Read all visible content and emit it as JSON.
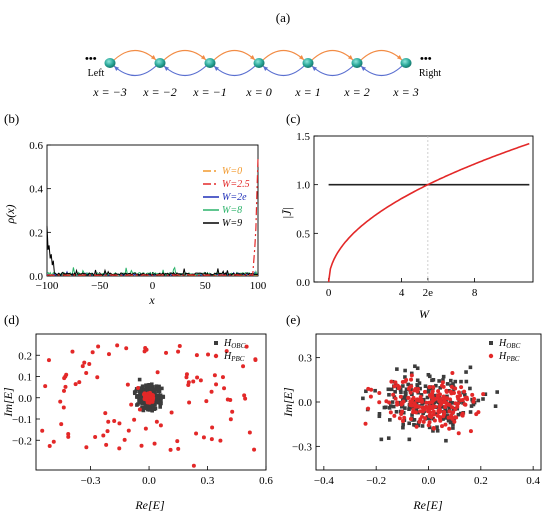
{
  "panel_a": {
    "label": "(a)",
    "left_label": "Left",
    "right_label": "Right",
    "dots": "•••",
    "site_labels": [
      "x = −3",
      "x = −2",
      "x = −1",
      "x = 0",
      "x = 1",
      "x = 2",
      "x = 3"
    ],
    "node_color": "#2aa89a",
    "hop_right_color": "#f28c45",
    "hop_left_color": "#5a6fd0"
  },
  "chart_data": [
    {
      "id": "b",
      "type": "line",
      "panel_label": "(b)",
      "xlabel": "x",
      "ylabel": "ρ(x)",
      "xlim": [
        -100,
        100
      ],
      "ylim": [
        0,
        0.6
      ],
      "xticks": [
        -100,
        -50,
        0,
        50,
        100
      ],
      "yticks": [
        0.0,
        0.2,
        0.4,
        0.6
      ],
      "legend_position": "right",
      "series": [
        {
          "name": "W=0",
          "color": "#f29a2e",
          "dash": "8,3,2,3"
        },
        {
          "name": "W=2.5",
          "color": "#e32828",
          "dash": "8,3,2,3"
        },
        {
          "name": "W=2e",
          "color": "#1f2fb8",
          "dash": ""
        },
        {
          "name": "W=8",
          "color": "#2bb36a",
          "dash": ""
        },
        {
          "name": "W=9",
          "color": "#000000",
          "dash": ""
        }
      ],
      "right_edge_peak": {
        "x": [
          96,
          97,
          98,
          99,
          100
        ],
        "y": [
          0.07,
          0.13,
          0.22,
          0.38,
          0.54
        ]
      },
      "left_edge_peak": {
        "x": [
          -100,
          -99,
          -98,
          -97,
          -96,
          -95,
          -94
        ],
        "y": [
          0.23,
          0.12,
          0.14,
          0.08,
          0.1,
          0.05,
          0.07
        ]
      }
    },
    {
      "id": "c",
      "type": "line",
      "panel_label": "(c)",
      "xlabel": "W",
      "ylabel": "|J̄|",
      "xlim": [
        -0.8,
        11.2
      ],
      "ylim": [
        0,
        1.5
      ],
      "xticks": [
        0,
        4,
        5.44,
        8
      ],
      "xticklabels": [
        "0",
        "4",
        "2e",
        "8"
      ],
      "yticks": [
        0.0,
        0.5,
        1.0,
        1.5
      ],
      "vline_x": 5.44,
      "hline_y": 1.0,
      "series": [
        {
          "color": "#e32828",
          "x": [
            0,
            0.5,
            1,
            2,
            3,
            4,
            5,
            5.44,
            6,
            7,
            8,
            9,
            10,
            11
          ],
          "y": [
            0,
            0.3,
            0.43,
            0.61,
            0.74,
            0.86,
            0.96,
            1.0,
            1.05,
            1.13,
            1.21,
            1.29,
            1.36,
            1.36
          ]
        },
        {
          "color": "#222222",
          "x": [
            0,
            11
          ],
          "y": [
            1.0,
            1.0
          ]
        }
      ]
    },
    {
      "id": "d",
      "type": "scatter",
      "panel_label": "(d)",
      "xlabel": "Re[E]",
      "ylabel": "Im[E]",
      "xlim": [
        -0.58,
        0.6
      ],
      "ylim": [
        -0.34,
        0.3
      ],
      "xticks": [
        -0.3,
        0.0,
        0.3,
        0.6
      ],
      "yticks": [
        -0.2,
        -0.1,
        0.0,
        0.1,
        0.2
      ],
      "legend_position": "top-right",
      "series": [
        {
          "name": "H_OBC",
          "name_main": "H",
          "name_sub": "OBC",
          "color": "#3c3c3c",
          "marker": "square"
        },
        {
          "name": "H_PBC",
          "name_main": "H",
          "name_sub": "PBC",
          "color": "#e32828",
          "marker": "circle"
        }
      ]
    },
    {
      "id": "e",
      "type": "scatter",
      "panel_label": "(e)",
      "xlabel": "Re[E]",
      "ylabel": "Im[E]",
      "xlim": [
        -0.43,
        0.43
      ],
      "ylim": [
        -0.46,
        0.46
      ],
      "xticks": [
        -0.4,
        -0.2,
        0.0,
        0.2,
        0.4
      ],
      "yticks": [
        -0.3,
        0.0,
        0.3
      ],
      "legend_position": "top-right",
      "series": [
        {
          "name": "H_OBC",
          "name_main": "H",
          "name_sub": "OBC",
          "color": "#3c3c3c",
          "marker": "square"
        },
        {
          "name": "H_PBC",
          "name_main": "H",
          "name_sub": "PBC",
          "color": "#e32828",
          "marker": "circle"
        }
      ]
    }
  ]
}
